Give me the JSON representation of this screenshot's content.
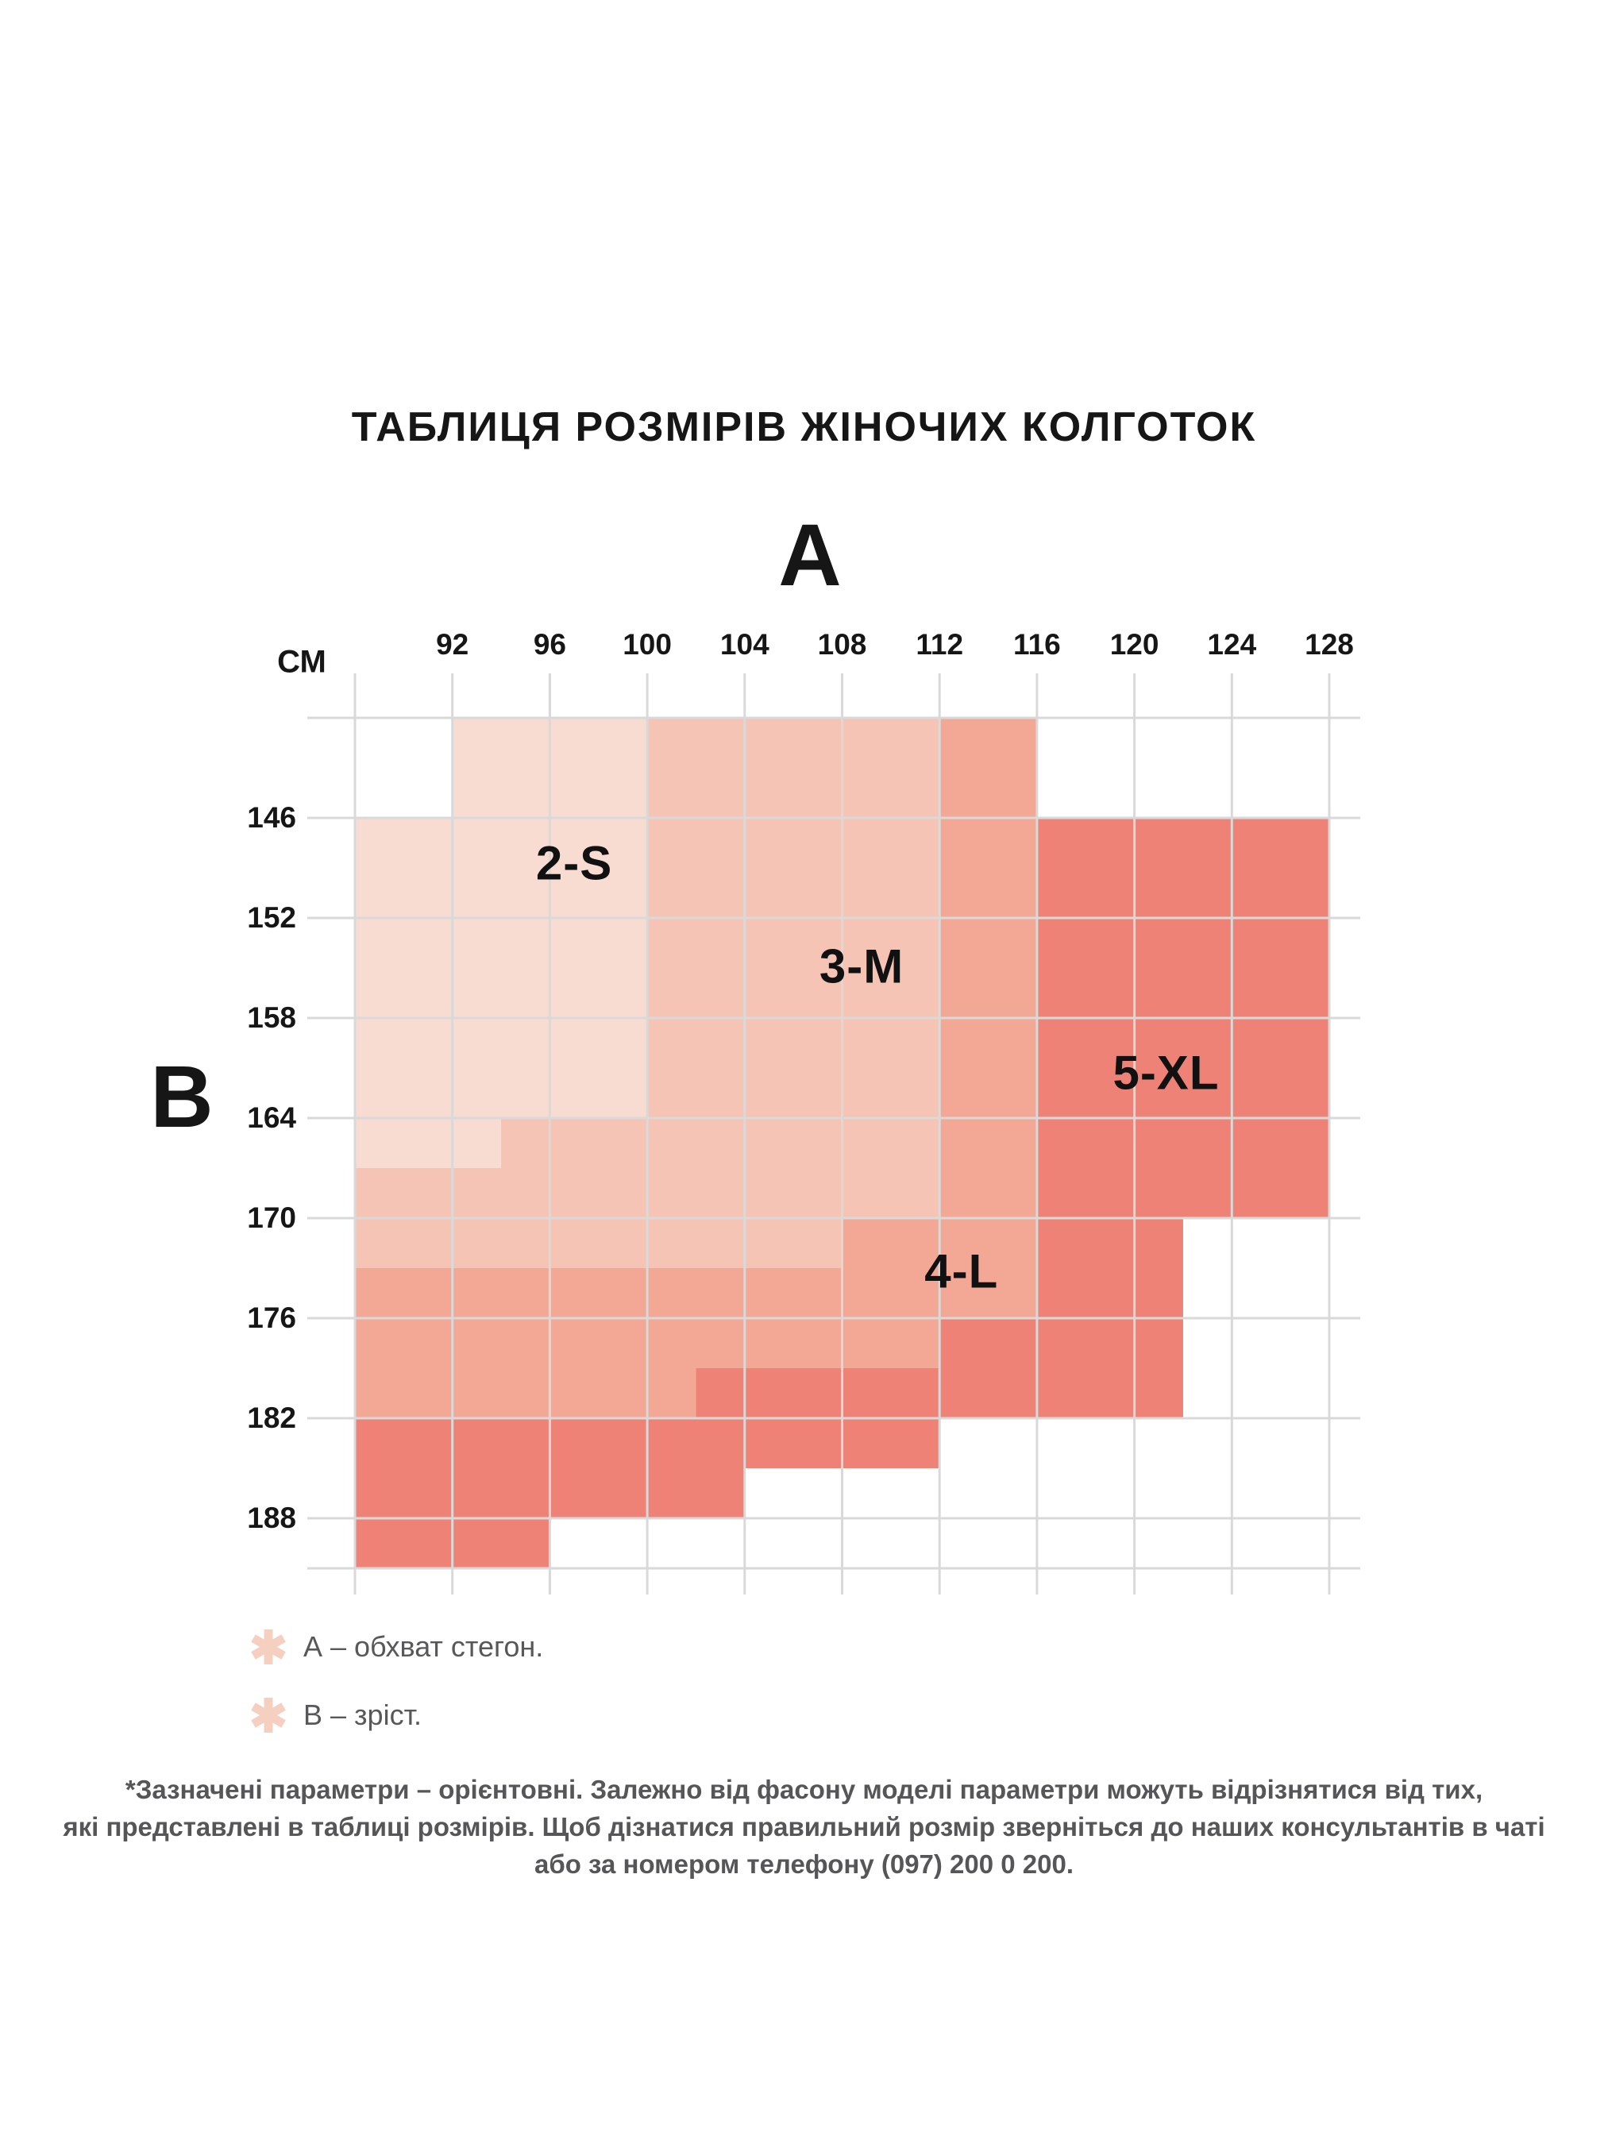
{
  "title": "ТАБЛИЦЯ РОЗМІРІВ ЖІНОЧИХ КОЛГОТОК",
  "axes": {
    "hips_axis_letter": "А",
    "height_axis_letter": "В",
    "unit_label": "СМ"
  },
  "chart_data": {
    "type": "heatmap",
    "subtype": "stepped-size-region-map",
    "x_axis": {
      "name": "А (обхват стегон, см)",
      "tick_labels": [
        92,
        96,
        100,
        104,
        108,
        112,
        116,
        120,
        124,
        128
      ],
      "gridlines_cm": [
        88,
        92,
        96,
        100,
        104,
        108,
        112,
        116,
        120,
        124,
        128
      ],
      "range_cm": [
        88,
        128
      ]
    },
    "y_axis": {
      "name": "В (зріст, см)",
      "tick_labels": [
        146,
        152,
        158,
        164,
        170,
        176,
        182,
        188
      ],
      "gridlines_cm": [
        140,
        146,
        152,
        158,
        164,
        170,
        176,
        182,
        188,
        191
      ],
      "range_cm": [
        140,
        191
      ]
    },
    "grid_color": "#d9d9d9",
    "sizes": [
      {
        "name": "2-S",
        "color": "#f8dcd2",
        "label_pos_cm": [
          97.0,
          148.7
        ],
        "polygon_cm": [
          [
            92,
            140
          ],
          [
            100,
            140
          ],
          [
            100,
            164
          ],
          [
            94,
            164
          ],
          [
            94,
            167
          ],
          [
            88,
            167
          ],
          [
            88,
            146
          ],
          [
            92,
            146
          ]
        ]
      },
      {
        "name": "3-М",
        "color": "#f5c4b5",
        "label_pos_cm": [
          108.8,
          154.9
        ],
        "polygon_cm": [
          [
            100,
            140
          ],
          [
            112,
            140
          ],
          [
            112,
            170
          ],
          [
            108,
            170
          ],
          [
            108,
            173
          ],
          [
            88,
            173
          ],
          [
            88,
            167
          ],
          [
            94,
            167
          ],
          [
            94,
            164
          ],
          [
            100,
            164
          ]
        ]
      },
      {
        "name": "4-L",
        "color": "#f3a795",
        "label_pos_cm": [
          112.9,
          173.2
        ],
        "polygon_cm": [
          [
            112,
            140
          ],
          [
            116,
            140
          ],
          [
            116,
            176
          ],
          [
            112,
            176
          ],
          [
            112,
            179
          ],
          [
            102,
            179
          ],
          [
            102,
            182
          ],
          [
            88,
            182
          ],
          [
            88,
            173
          ],
          [
            108,
            173
          ],
          [
            108,
            170
          ],
          [
            112,
            170
          ]
        ]
      },
      {
        "name": "5-XL",
        "color": "#ee8276",
        "label_pos_cm": [
          121.3,
          161.3
        ],
        "polygon_cm": [
          [
            116,
            146
          ],
          [
            128,
            146
          ],
          [
            128,
            170
          ],
          [
            122,
            170
          ],
          [
            122,
            182
          ],
          [
            112,
            182
          ],
          [
            112,
            185
          ],
          [
            104,
            185
          ],
          [
            104,
            188
          ],
          [
            96,
            188
          ],
          [
            96,
            191
          ],
          [
            88,
            191
          ],
          [
            88,
            182
          ],
          [
            102,
            182
          ],
          [
            102,
            179
          ],
          [
            112,
            179
          ],
          [
            112,
            176
          ],
          [
            116,
            176
          ]
        ]
      }
    ]
  },
  "legend": {
    "marker_color": "#f5cfc0",
    "items": [
      {
        "text": "А – обхват стегон."
      },
      {
        "text": "В – зріст."
      }
    ]
  },
  "footnote_lines": [
    "*Зазначені параметри – орієнтовні. Залежно від фасону моделі параметри можуть відрізнятися від тих,",
    "які представлені в таблиці розмірів. Щоб дізнатися правильний розмір зверніться до наших консультантів в чаті",
    "або за номером телефону (097) 200 0 200."
  ]
}
